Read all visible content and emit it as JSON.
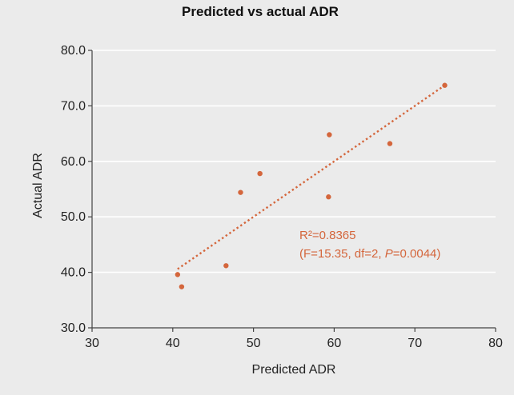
{
  "chart_data": {
    "type": "scatter",
    "title": "Predicted vs actual ADR",
    "xlabel": "Predicted ADR",
    "ylabel": "Actual ADR",
    "xlim": [
      30,
      80
    ],
    "ylim": [
      30,
      80
    ],
    "x_ticks": [
      "30",
      "40",
      "50",
      "60",
      "70",
      "80"
    ],
    "y_ticks": [
      "30.0",
      "40.0",
      "50.0",
      "60.0",
      "70.0",
      "80.0"
    ],
    "x_tick_values": [
      30,
      40,
      50,
      60,
      70,
      80
    ],
    "y_tick_values": [
      30,
      40,
      50,
      60,
      70,
      80
    ],
    "grid": "horizontal",
    "points": [
      {
        "x": 40.6,
        "y": 39.6
      },
      {
        "x": 41.1,
        "y": 37.4
      },
      {
        "x": 46.6,
        "y": 41.2
      },
      {
        "x": 48.4,
        "y": 54.4
      },
      {
        "x": 50.8,
        "y": 57.8
      },
      {
        "x": 59.3,
        "y": 53.6
      },
      {
        "x": 59.4,
        "y": 64.8
      },
      {
        "x": 66.9,
        "y": 63.2
      },
      {
        "x": 73.7,
        "y": 73.7
      }
    ],
    "trendline": {
      "style": "dotted",
      "from": {
        "x": 40.6,
        "y": 40.6
      },
      "to": {
        "x": 73.7,
        "y": 73.7
      }
    },
    "annotation": {
      "line1": "R²=0.8365",
      "line2_prefix": "(F=15.35, df=2, ",
      "line2_italic": "P",
      "line2_suffix": "=0.0044)"
    },
    "colors": {
      "points": "#d4663c",
      "trendline": "#d4663c",
      "annotation": "#d4663c",
      "background": "#ebebeb",
      "grid": "#ffffff"
    }
  }
}
